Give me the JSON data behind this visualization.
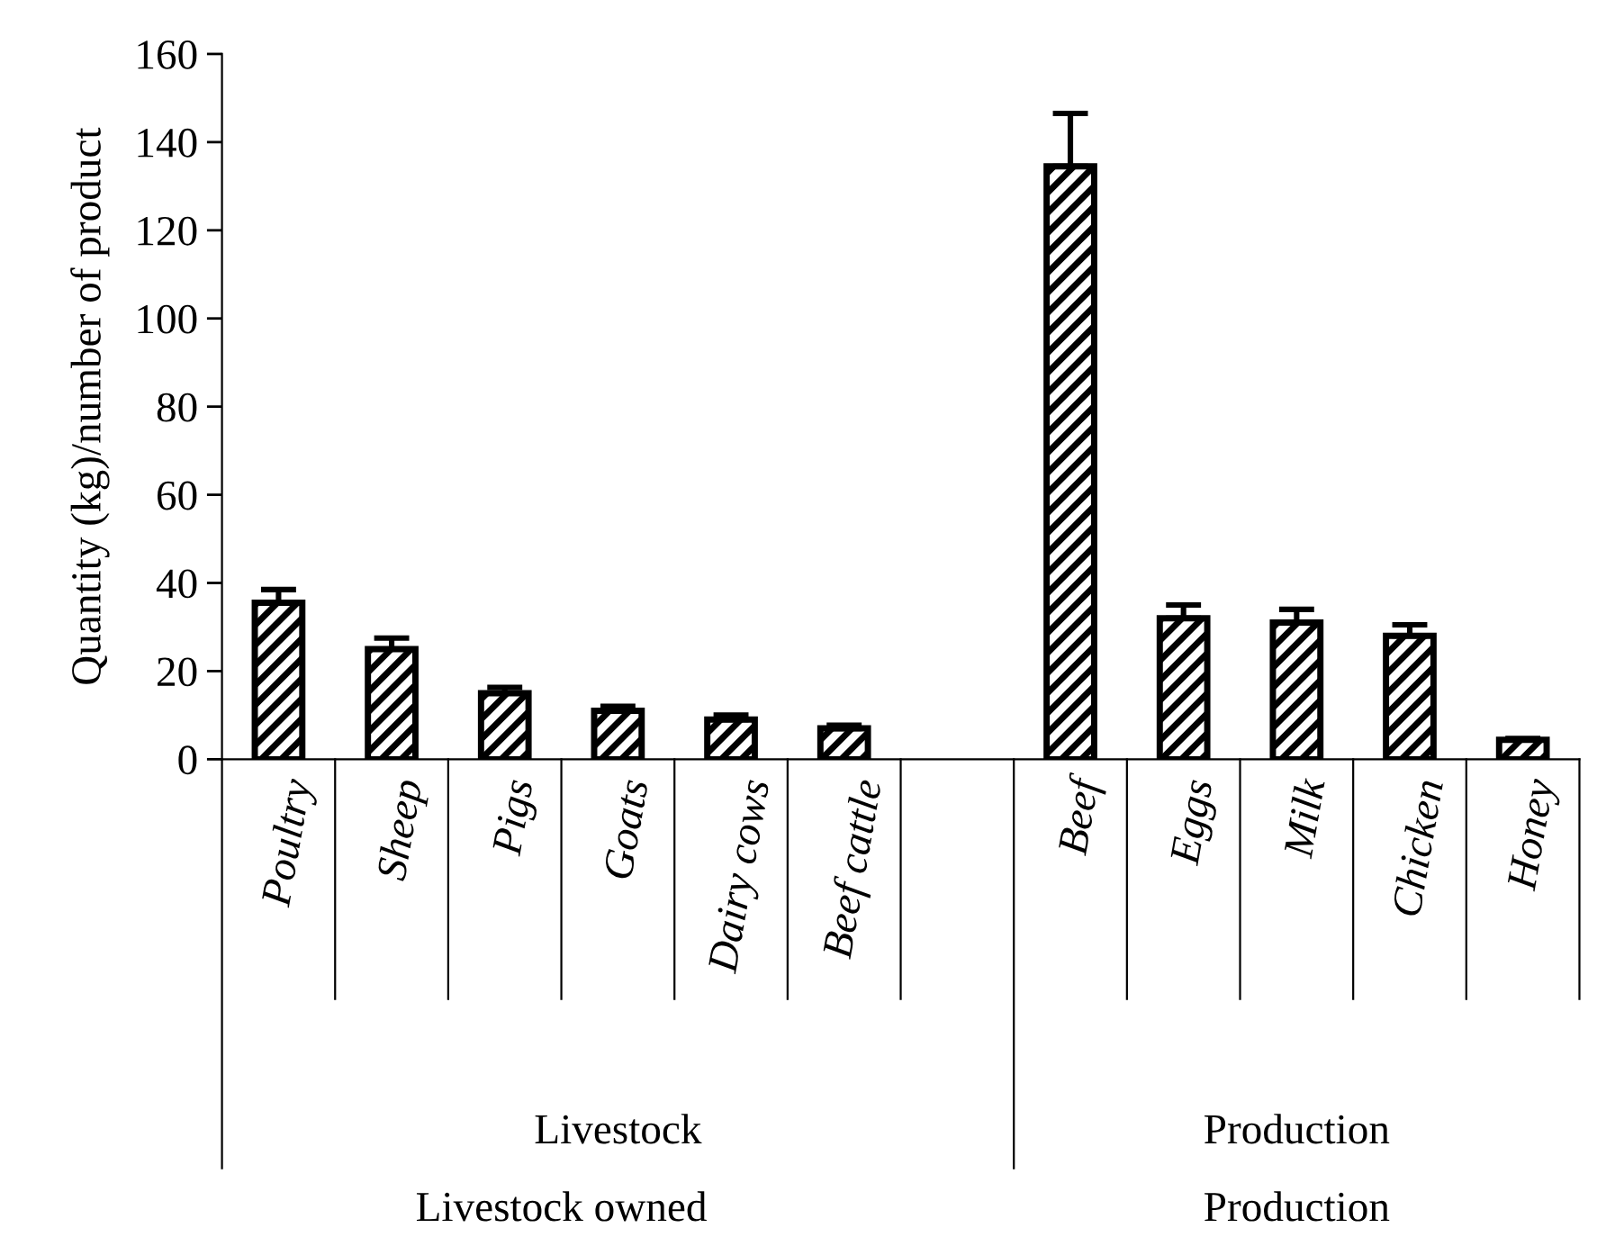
{
  "chart_data": {
    "type": "bar",
    "ylabel": "Quantity (kg)/number of product",
    "categories": [
      "Poultry",
      "Sheep",
      "Pigs",
      "Goats",
      "Dairy cows",
      "Beef cattle",
      null,
      "Beef",
      "Eggs",
      "Milk",
      "Chicken",
      "Honey"
    ],
    "values": [
      35.5,
      25,
      15,
      11,
      9,
      7,
      null,
      134.5,
      32,
      31,
      28,
      4.4
    ],
    "errors": [
      [
        35.5,
        38.5
      ],
      [
        25,
        27.5
      ],
      [
        15,
        16.3
      ],
      [
        11,
        12
      ],
      [
        9,
        10
      ],
      [
        7,
        7.7
      ],
      null,
      [
        134.5,
        146.5
      ],
      [
        32,
        35
      ],
      [
        31,
        34
      ],
      [
        28,
        30.5
      ],
      [
        4.4,
        4.7
      ]
    ],
    "color": "#000000",
    "ylim": [
      0,
      160
    ],
    "yticks": [
      0,
      20,
      40,
      60,
      80,
      100,
      120,
      140,
      160
    ],
    "annotations": [
      "Livestock",
      "Production",
      "Livestock owned",
      "Production"
    ]
  }
}
